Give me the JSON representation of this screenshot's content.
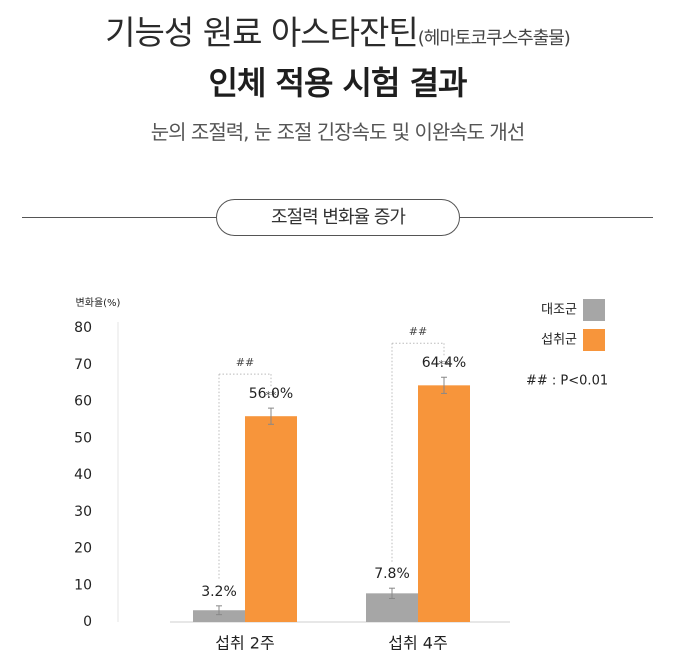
{
  "header": {
    "title_main": "기능성 원료 아스타잔틴",
    "title_paren": "(헤마토코쿠스추출물)",
    "title_sub": "인체 적용 시험 결과",
    "subtitle": "눈의 조절력, 눈 조절 긴장속도 및 이완속도 개선",
    "section_label": "조절력 변화율 증가"
  },
  "chart_data": {
    "type": "bar",
    "title": "조절력 변화율 증가",
    "ylabel": "변화율(%)",
    "ylim": [
      0,
      80
    ],
    "yticks": [
      0,
      10,
      20,
      30,
      40,
      50,
      60,
      70,
      80
    ],
    "grid": false,
    "legend_position": "top-right",
    "categories": [
      "섭취 2주",
      "섭취 4주"
    ],
    "series": [
      {
        "name": "대조군",
        "color": "#a6a6a6",
        "values": [
          3.2,
          7.8
        ],
        "labels": [
          "3.2%",
          "7.8%"
        ],
        "error": [
          1.2,
          1.4
        ]
      },
      {
        "name": "섭취군",
        "color": "#f7953b",
        "values": [
          56.0,
          64.4
        ],
        "labels": [
          "56.0%",
          "64.4%"
        ],
        "error": [
          2.2,
          2.2
        ]
      }
    ],
    "annotations": {
      "treated_mark": "**",
      "between_mark": "##",
      "note": "## : P<0.01"
    }
  }
}
